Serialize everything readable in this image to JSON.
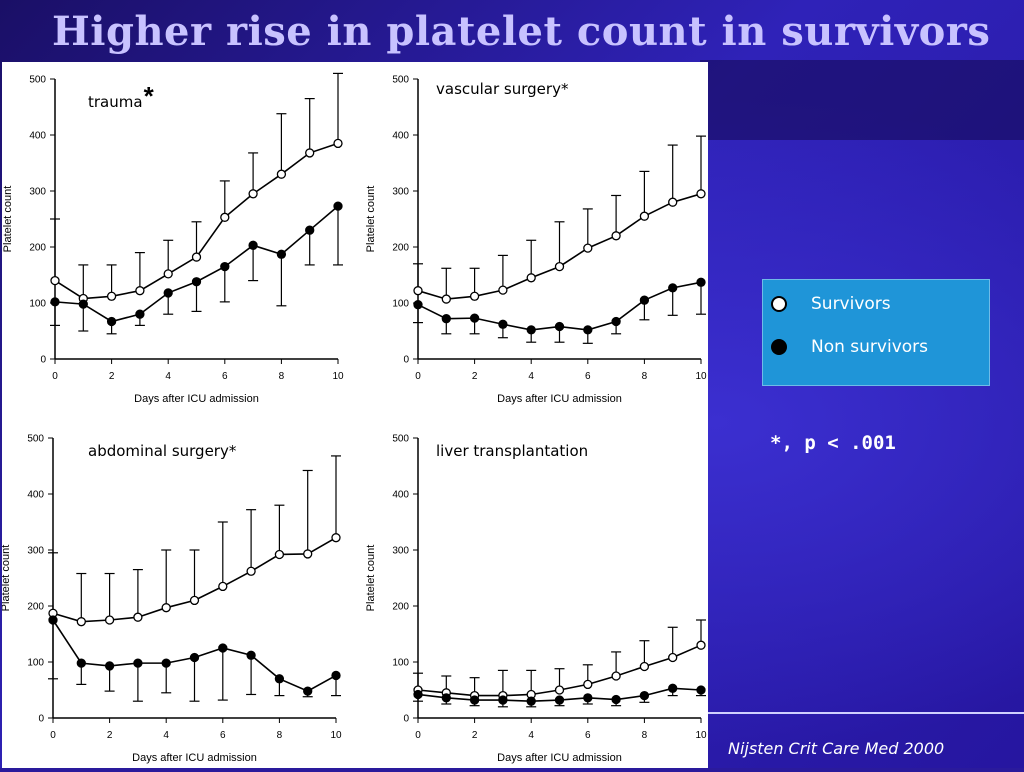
{
  "slide": {
    "title": "Higher rise in platelet count in survivors",
    "significance_note": "*, p < .001",
    "citation": "Nijsten Crit Care Med  2000"
  },
  "legend": {
    "items": [
      {
        "label": "Survivors",
        "marker": "open-circle"
      },
      {
        "label": "Non survivors",
        "marker": "filled-circle"
      }
    ]
  },
  "colors": {
    "background": "#2a1a9c",
    "title": "#c8c2ff",
    "legend_box": "#1f95d8",
    "plot_ink": "#000000"
  },
  "chart_data": [
    {
      "type": "line",
      "panel_label": "trauma",
      "panel_label_marker": "*",
      "xlabel": "Days after ICU admission",
      "ylabel": "Platelet count",
      "xlim": [
        0,
        10
      ],
      "ylim": [
        0,
        500
      ],
      "xticks": [
        0,
        2,
        4,
        6,
        8,
        10
      ],
      "yticks": [
        0,
        100,
        200,
        300,
        400,
        500
      ],
      "x": [
        0,
        1,
        2,
        3,
        4,
        5,
        6,
        7,
        8,
        9,
        10
      ],
      "series": [
        {
          "values": [
            140,
            108,
            112,
            122,
            152,
            182,
            253,
            295,
            330,
            368,
            385
          ],
          "upper": [
            250,
            168,
            168,
            190,
            212,
            245,
            318,
            368,
            438,
            465,
            510
          ],
          "marker": "open"
        },
        {
          "values": [
            102,
            98,
            67,
            80,
            118,
            138,
            165,
            203,
            187,
            230,
            273
          ],
          "lower": [
            60,
            50,
            45,
            60,
            80,
            85,
            102,
            140,
            95,
            168,
            168
          ],
          "marker": "filled"
        }
      ]
    },
    {
      "type": "line",
      "panel_label": "vascular surgery*",
      "panel_label_marker": "",
      "xlabel": "Days after ICU admission",
      "ylabel": "Platelet count",
      "xlim": [
        0,
        10
      ],
      "ylim": [
        0,
        500
      ],
      "xticks": [
        0,
        2,
        4,
        6,
        8,
        10
      ],
      "yticks": [
        0,
        100,
        200,
        300,
        400,
        500
      ],
      "x": [
        0,
        1,
        2,
        3,
        4,
        5,
        6,
        7,
        8,
        9,
        10
      ],
      "series": [
        {
          "values": [
            122,
            107,
            112,
            123,
            145,
            165,
            198,
            220,
            255,
            280,
            295
          ],
          "upper": [
            170,
            162,
            162,
            185,
            212,
            245,
            268,
            292,
            335,
            382,
            398
          ],
          "marker": "open"
        },
        {
          "values": [
            97,
            72,
            73,
            62,
            52,
            58,
            52,
            67,
            105,
            127,
            137
          ],
          "lower": [
            65,
            45,
            45,
            38,
            30,
            30,
            28,
            45,
            70,
            78,
            80
          ],
          "marker": "filled"
        }
      ]
    },
    {
      "type": "line",
      "panel_label": "abdominal surgery*",
      "panel_label_marker": "",
      "xlabel": "Days after ICU admission",
      "ylabel": "Platelet count",
      "xlim": [
        0,
        10
      ],
      "ylim": [
        0,
        500
      ],
      "xticks": [
        0,
        2,
        4,
        6,
        8,
        10
      ],
      "yticks": [
        0,
        100,
        200,
        300,
        400,
        500
      ],
      "x": [
        0,
        1,
        2,
        3,
        4,
        5,
        6,
        7,
        8,
        9,
        10
      ],
      "series": [
        {
          "values": [
            187,
            172,
            175,
            180,
            197,
            210,
            235,
            262,
            292,
            293,
            322
          ],
          "upper": [
            295,
            258,
            258,
            265,
            300,
            300,
            350,
            372,
            380,
            442,
            468
          ],
          "marker": "open"
        },
        {
          "values": [
            175,
            98,
            93,
            98,
            98,
            108,
            125,
            112,
            70,
            48,
            76
          ],
          "lower": [
            70,
            60,
            48,
            30,
            45,
            30,
            32,
            42,
            40,
            38,
            40
          ],
          "marker": "filled"
        }
      ]
    },
    {
      "type": "line",
      "panel_label": "liver transplantation",
      "panel_label_marker": "",
      "xlabel": "Days after ICU admission",
      "ylabel": "Platelet count",
      "xlim": [
        0,
        10
      ],
      "ylim": [
        0,
        500
      ],
      "xticks": [
        0,
        2,
        4,
        6,
        8,
        10
      ],
      "yticks": [
        0,
        100,
        200,
        300,
        400,
        500
      ],
      "x": [
        0,
        1,
        2,
        3,
        4,
        5,
        6,
        7,
        8,
        9,
        10
      ],
      "series": [
        {
          "values": [
            50,
            45,
            40,
            40,
            42,
            50,
            60,
            75,
            92,
            108,
            130
          ],
          "upper": [
            80,
            75,
            72,
            85,
            85,
            88,
            95,
            118,
            138,
            162,
            175
          ],
          "marker": "open"
        },
        {
          "values": [
            42,
            36,
            32,
            32,
            30,
            32,
            36,
            33,
            40,
            53,
            50
          ],
          "lower": [
            30,
            25,
            22,
            20,
            20,
            22,
            25,
            22,
            28,
            40,
            40
          ],
          "marker": "filled"
        }
      ]
    }
  ]
}
